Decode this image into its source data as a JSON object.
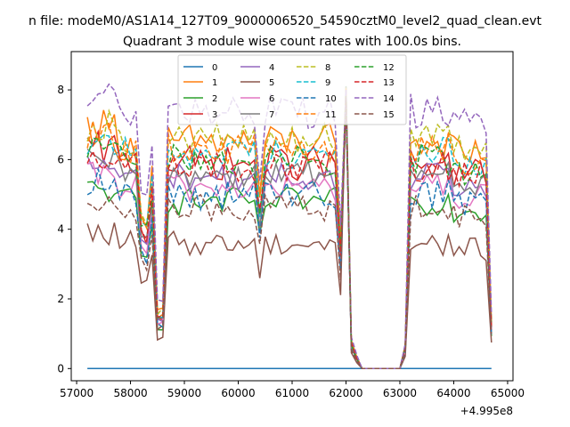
{
  "page": {
    "suptitle": "n file: modeM0/AS1A14_127T09_9000006520_54590cztM0_level2_quad_clean.evt",
    "title": "Quadrant 3 module wise count rates with 100.0s bins."
  },
  "chart_data": {
    "type": "line",
    "title": "Quadrant 3 module wise count rates with 100.0s bins.",
    "xlabel": "",
    "ylabel": "",
    "x_offset_label": "+4.995e8",
    "xlim": [
      56900,
      65100
    ],
    "ylim": [
      -0.35,
      9.1
    ],
    "xticks": [
      57000,
      58000,
      59000,
      60000,
      61000,
      62000,
      63000,
      64000,
      65000
    ],
    "yticks": [
      0,
      2,
      4,
      6,
      8
    ],
    "legend": {
      "placement": "top-center",
      "ncol": 4
    },
    "series": [
      {
        "name": "0",
        "color": "#1f77b4",
        "dash": "solid"
      },
      {
        "name": "1",
        "color": "#ff7f0e",
        "dash": "solid",
        "level": 6.5,
        "spread": 0.55
      },
      {
        "name": "2",
        "color": "#2ca02c",
        "dash": "solid",
        "level": 4.8,
        "spread": 0.4
      },
      {
        "name": "3",
        "color": "#d62728",
        "dash": "solid",
        "level": 5.9,
        "spread": 0.5
      },
      {
        "name": "4",
        "color": "#9467bd",
        "dash": "solid",
        "level": 5.5,
        "spread": 0.4
      },
      {
        "name": "5",
        "color": "#8c564b",
        "dash": "solid",
        "level": 3.6,
        "spread": 0.35
      },
      {
        "name": "6",
        "color": "#e377c2",
        "dash": "solid",
        "level": 5.2,
        "spread": 0.4
      },
      {
        "name": "7",
        "color": "#7f7f7f",
        "dash": "solid",
        "level": 5.6,
        "spread": 0.4
      },
      {
        "name": "8",
        "color": "#bcbd22",
        "dash": "dashed",
        "level": 6.6,
        "spread": 0.45
      },
      {
        "name": "9",
        "color": "#17becf",
        "dash": "dashed",
        "level": 6.2,
        "spread": 0.45
      },
      {
        "name": "10",
        "color": "#1f77b4",
        "dash": "dashed",
        "level": 5.0,
        "spread": 0.45
      },
      {
        "name": "11",
        "color": "#ff7f0e",
        "dash": "dashed",
        "level": 6.3,
        "spread": 0.45
      },
      {
        "name": "12",
        "color": "#2ca02c",
        "dash": "dashed",
        "level": 6.0,
        "spread": 0.45
      },
      {
        "name": "13",
        "color": "#d62728",
        "dash": "dashed",
        "level": 5.8,
        "spread": 0.45
      },
      {
        "name": "14",
        "color": "#9467bd",
        "dash": "dashed",
        "level": 7.4,
        "spread": 0.5
      },
      {
        "name": "15",
        "color": "#8c564b",
        "dash": "dashed",
        "level": 4.6,
        "spread": 0.4
      }
    ],
    "time": {
      "start": 57200,
      "end": 64700,
      "step": 100
    },
    "features": {
      "dips": [
        {
          "start": 58200,
          "end": 58300,
          "depth": 0.65
        },
        {
          "start": 58500,
          "end": 58600,
          "depth": 0.25
        },
        {
          "start": 60400,
          "end": 60400,
          "depth": 0.75
        },
        {
          "start": 61900,
          "end": 61900,
          "depth": 0.55
        }
      ],
      "spike": {
        "at": 62000,
        "value": 8.2
      },
      "gaps": [
        {
          "start": 62300,
          "end": 63000,
          "value": 0.0
        }
      ]
    }
  }
}
